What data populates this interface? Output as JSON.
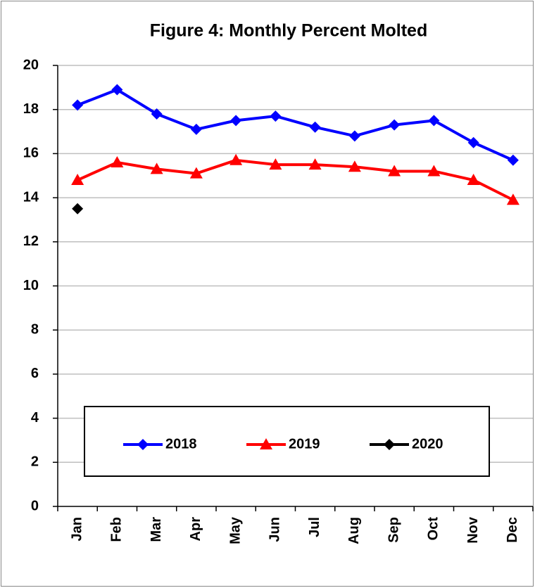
{
  "chart_data": {
    "type": "line",
    "title": "Figure 4: Monthly Percent Molted",
    "categories": [
      "Jan",
      "Feb",
      "Mar",
      "Apr",
      "May",
      "Jun",
      "Jul",
      "Aug",
      "Sep",
      "Oct",
      "Nov",
      "Dec"
    ],
    "series": [
      {
        "name": "2018",
        "color": "#0000ff",
        "marker": "diamond",
        "values": [
          18.2,
          18.9,
          17.8,
          17.1,
          17.5,
          17.7,
          17.2,
          16.8,
          17.3,
          17.5,
          16.5,
          15.7
        ]
      },
      {
        "name": "2019",
        "color": "#ff0000",
        "marker": "triangle",
        "values": [
          14.8,
          15.6,
          15.3,
          15.1,
          15.7,
          15.5,
          15.5,
          15.4,
          15.2,
          15.2,
          14.8,
          13.9
        ]
      },
      {
        "name": "2020",
        "color": "#000000",
        "marker": "diamond",
        "values": [
          13.5,
          null,
          null,
          null,
          null,
          null,
          null,
          null,
          null,
          null,
          null,
          null
        ]
      }
    ],
    "ylim": [
      0,
      20
    ],
    "yticks": [
      0,
      2,
      4,
      6,
      8,
      10,
      12,
      14,
      16,
      18,
      20
    ],
    "grid": true,
    "legend": "lower center"
  }
}
